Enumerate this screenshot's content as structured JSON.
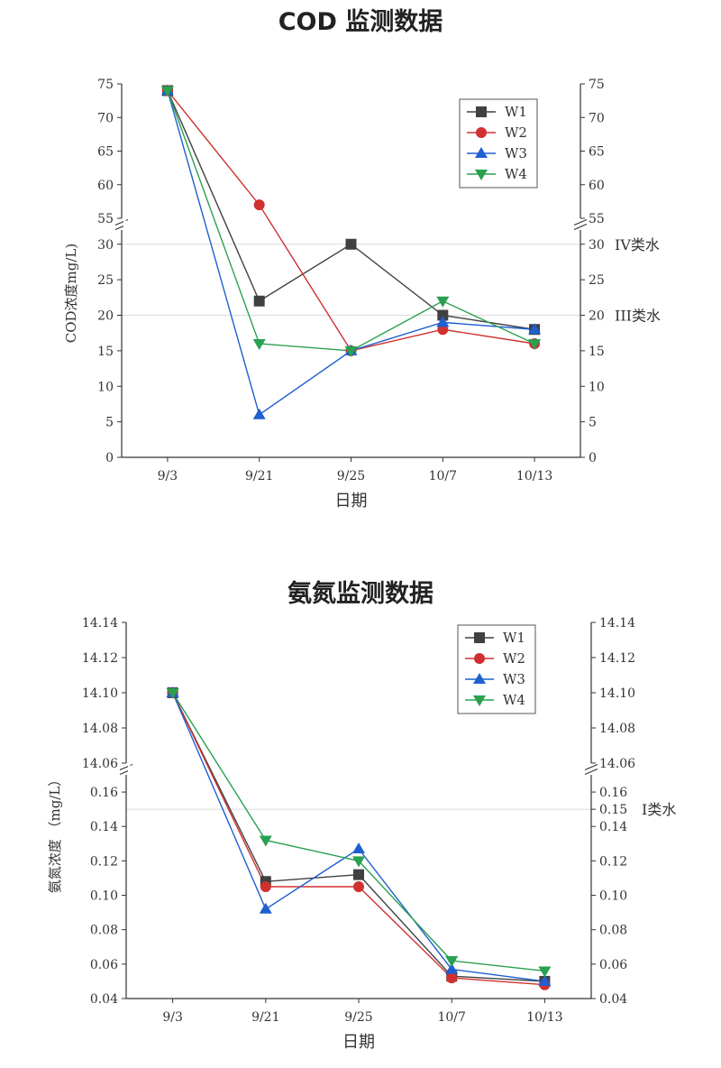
{
  "chart_data": [
    {
      "type": "line",
      "title": "COD 监测数据",
      "xlabel": "日期",
      "ylabel": "COD浓度mg/L)",
      "categories": [
        "9/3",
        "9/21",
        "9/25",
        "10/7",
        "10/13"
      ],
      "axis_break": true,
      "y_lower": {
        "range": [
          0,
          32
        ],
        "ticks": [
          0,
          5,
          10,
          15,
          20,
          25,
          30
        ]
      },
      "y_upper": {
        "range": [
          55,
          75
        ],
        "ticks": [
          55,
          60,
          65,
          70,
          75
        ]
      },
      "reference_lines": [
        {
          "value": 30,
          "label": "IV类水"
        },
        {
          "value": 20,
          "label": "III类水"
        }
      ],
      "legend_position": "top-right",
      "series": [
        {
          "name": "W1",
          "color": "#404040",
          "marker": "square",
          "values": [
            74,
            22,
            30,
            20,
            18
          ]
        },
        {
          "name": "W2",
          "color": "#d03030",
          "marker": "circle",
          "values": [
            74,
            57,
            15,
            18,
            16
          ]
        },
        {
          "name": "W3",
          "color": "#1f5fd0",
          "marker": "triangle-up",
          "values": [
            74,
            6,
            15,
            19,
            18
          ]
        },
        {
          "name": "W4",
          "color": "#2aa050",
          "marker": "triangle-down",
          "values": [
            74,
            16,
            15,
            22,
            16
          ]
        }
      ]
    },
    {
      "type": "line",
      "title": "氨氮监测数据",
      "xlabel": "日期",
      "ylabel": "氨氮浓度 （mg/L）",
      "categories": [
        "9/3",
        "9/21",
        "9/25",
        "10/7",
        "10/13"
      ],
      "axis_break": true,
      "y_lower": {
        "range": [
          0.04,
          0.17
        ],
        "ticks": [
          "0.04",
          "0.06",
          "0.08",
          "0.10",
          "0.12",
          "0.14",
          "0.16"
        ]
      },
      "y_upper": {
        "range": [
          14.06,
          14.14
        ],
        "ticks": [
          "14.06",
          "14.08",
          "14.10",
          "14.12",
          "14.14"
        ]
      },
      "extra_right_tick": "0.15",
      "reference_lines": [
        {
          "value": 0.15,
          "label": "Ⅰ类水"
        }
      ],
      "legend_position": "top-right",
      "series": [
        {
          "name": "W1",
          "color": "#404040",
          "marker": "square",
          "values": [
            14.1,
            0.108,
            0.112,
            0.053,
            0.05
          ]
        },
        {
          "name": "W2",
          "color": "#d03030",
          "marker": "circle",
          "values": [
            14.1,
            0.105,
            0.105,
            0.052,
            0.048
          ]
        },
        {
          "name": "W3",
          "color": "#1f5fd0",
          "marker": "triangle-up",
          "values": [
            14.1,
            0.092,
            0.127,
            0.057,
            0.05
          ]
        },
        {
          "name": "W4",
          "color": "#2aa050",
          "marker": "triangle-down",
          "values": [
            14.1,
            0.132,
            0.12,
            0.062,
            0.056
          ]
        }
      ]
    }
  ]
}
